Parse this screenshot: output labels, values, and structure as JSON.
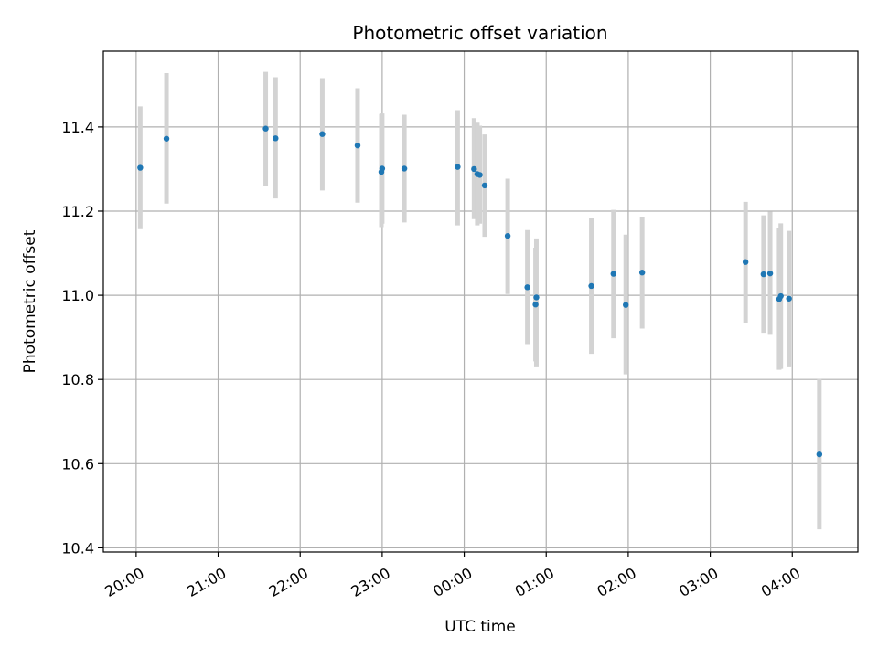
{
  "chart_data": {
    "type": "scatter",
    "title": "Photometric offset variation",
    "xlabel": "UTC time",
    "ylabel": "Photometric offset",
    "x_unit": "UTC time of night (hours, 24+ = after midnight)",
    "xlim": [
      19.6,
      28.8
    ],
    "ylim": [
      10.39,
      11.58
    ],
    "x_ticks": [
      {
        "value": 20,
        "label": "20:00"
      },
      {
        "value": 21,
        "label": "21:00"
      },
      {
        "value": 22,
        "label": "22:00"
      },
      {
        "value": 23,
        "label": "23:00"
      },
      {
        "value": 24,
        "label": "00:00"
      },
      {
        "value": 25,
        "label": "01:00"
      },
      {
        "value": 26,
        "label": "02:00"
      },
      {
        "value": 27,
        "label": "03:00"
      },
      {
        "value": 28,
        "label": "04:00"
      }
    ],
    "y_ticks": [
      {
        "value": 10.4,
        "label": "10.4"
      },
      {
        "value": 10.6,
        "label": "10.6"
      },
      {
        "value": 10.8,
        "label": "10.8"
      },
      {
        "value": 11.0,
        "label": "11.0"
      },
      {
        "value": 11.2,
        "label": "11.2"
      },
      {
        "value": 11.4,
        "label": "11.4"
      }
    ],
    "grid": true,
    "point_color": "#1f77b4",
    "errorbar_color": "#d3d3d3",
    "points": [
      {
        "x": 20.05,
        "y": 11.303,
        "lo": 11.157,
        "hi": 11.449
      },
      {
        "x": 20.37,
        "y": 11.372,
        "lo": 11.218,
        "hi": 11.528
      },
      {
        "x": 21.58,
        "y": 11.396,
        "lo": 11.26,
        "hi": 11.531
      },
      {
        "x": 21.7,
        "y": 11.373,
        "lo": 11.23,
        "hi": 11.518
      },
      {
        "x": 22.27,
        "y": 11.383,
        "lo": 11.249,
        "hi": 11.516
      },
      {
        "x": 22.7,
        "y": 11.356,
        "lo": 11.22,
        "hi": 11.492
      },
      {
        "x": 22.99,
        "y": 11.293,
        "lo": 11.162,
        "hi": 11.431
      },
      {
        "x": 23.0,
        "y": 11.301,
        "lo": 11.17,
        "hi": 11.432
      },
      {
        "x": 23.27,
        "y": 11.301,
        "lo": 11.173,
        "hi": 11.429
      },
      {
        "x": 23.92,
        "y": 11.305,
        "lo": 11.166,
        "hi": 11.44
      },
      {
        "x": 24.12,
        "y": 11.3,
        "lo": 11.181,
        "hi": 11.421
      },
      {
        "x": 24.16,
        "y": 11.288,
        "lo": 11.166,
        "hi": 11.41
      },
      {
        "x": 24.19,
        "y": 11.286,
        "lo": 11.17,
        "hi": 11.403
      },
      {
        "x": 24.25,
        "y": 11.261,
        "lo": 11.139,
        "hi": 11.382
      },
      {
        "x": 24.53,
        "y": 11.141,
        "lo": 11.003,
        "hi": 11.277
      },
      {
        "x": 24.77,
        "y": 11.019,
        "lo": 10.884,
        "hi": 11.155
      },
      {
        "x": 24.87,
        "y": 10.978,
        "lo": 10.843,
        "hi": 11.113
      },
      {
        "x": 24.88,
        "y": 10.995,
        "lo": 10.829,
        "hi": 11.135
      },
      {
        "x": 25.55,
        "y": 11.022,
        "lo": 10.861,
        "hi": 11.183
      },
      {
        "x": 25.82,
        "y": 11.051,
        "lo": 10.898,
        "hi": 11.203
      },
      {
        "x": 25.97,
        "y": 10.977,
        "lo": 10.812,
        "hi": 11.144
      },
      {
        "x": 26.17,
        "y": 11.054,
        "lo": 10.921,
        "hi": 11.187
      },
      {
        "x": 27.43,
        "y": 11.079,
        "lo": 10.935,
        "hi": 11.222
      },
      {
        "x": 27.65,
        "y": 11.05,
        "lo": 10.911,
        "hi": 11.19
      },
      {
        "x": 27.73,
        "y": 11.052,
        "lo": 10.906,
        "hi": 11.199
      },
      {
        "x": 27.84,
        "y": 10.991,
        "lo": 10.823,
        "hi": 11.16
      },
      {
        "x": 27.86,
        "y": 10.998,
        "lo": 10.825,
        "hi": 11.171
      },
      {
        "x": 27.96,
        "y": 10.992,
        "lo": 10.829,
        "hi": 11.153
      },
      {
        "x": 28.33,
        "y": 10.622,
        "lo": 10.444,
        "hi": 10.801
      }
    ]
  }
}
